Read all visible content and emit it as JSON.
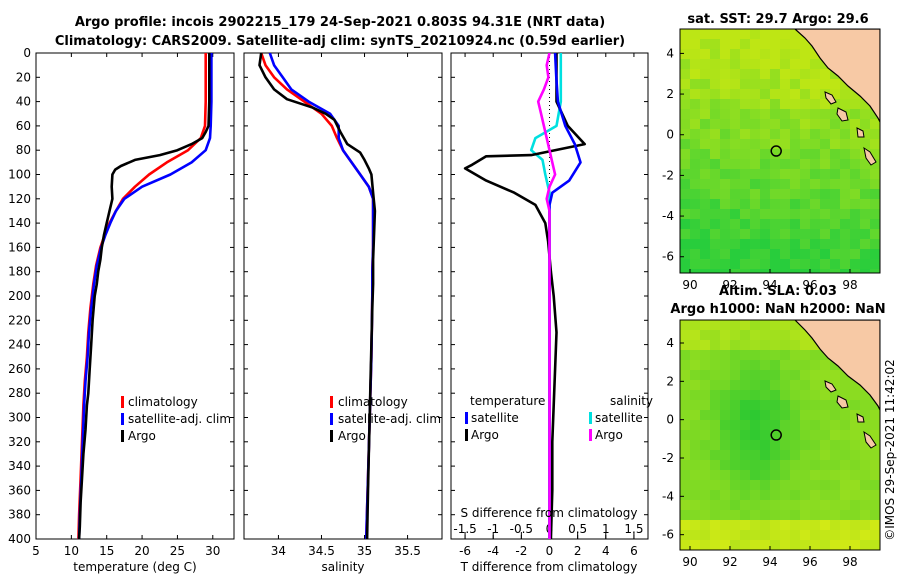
{
  "title_line1": "Argo profile: incois 2902215_179 24-Sep-2021 0.803S 94.31E (NRT data)",
  "title_line2": "Climatology: CARS2009. Satellite-adj clim: synTS_20210924.nc (0.59d earlier)",
  "credit": "©IMOS 29-Sep-2021 11:42:02",
  "colors": {
    "climatology": "#ff0000",
    "satellite": "#0000ff",
    "argo": "#000000",
    "sat_T": "#00e0e0",
    "sat_S": "#ff00ff",
    "land": "#f7c9a5"
  },
  "chart_data": [
    {
      "id": "temperature",
      "type": "line",
      "xlabel": "temperature (deg C)",
      "ylabel": "",
      "xlim": [
        5,
        33
      ],
      "ylim": [
        400,
        0
      ],
      "xticks": [
        5,
        10,
        15,
        20,
        25,
        30
      ],
      "yticks": [
        0,
        20,
        40,
        60,
        80,
        100,
        120,
        140,
        160,
        180,
        200,
        220,
        240,
        260,
        280,
        300,
        320,
        340,
        360,
        380,
        400
      ],
      "legend": [
        "climatology",
        "satellite-adj. clim",
        "Argo"
      ],
      "series": [
        {
          "name": "climatology",
          "color": "#ff0000",
          "points": [
            [
              29.0,
              0
            ],
            [
              29.0,
              20
            ],
            [
              29.0,
              40
            ],
            [
              28.9,
              60
            ],
            [
              28.3,
              70
            ],
            [
              26.5,
              80
            ],
            [
              23.5,
              90
            ],
            [
              21.0,
              100
            ],
            [
              19.0,
              110
            ],
            [
              17.3,
              120
            ],
            [
              16.3,
              130
            ],
            [
              15.4,
              140
            ],
            [
              14.7,
              150
            ],
            [
              14.1,
              160
            ],
            [
              13.5,
              175
            ],
            [
              13.1,
              190
            ],
            [
              12.7,
              210
            ],
            [
              12.4,
              230
            ],
            [
              12.2,
              250
            ],
            [
              11.9,
              270
            ],
            [
              11.7,
              290
            ],
            [
              11.5,
              320
            ],
            [
              11.3,
              350
            ],
            [
              11.1,
              380
            ],
            [
              11.0,
              400
            ]
          ]
        },
        {
          "name": "satellite-adj. clim",
          "color": "#0000ff",
          "points": [
            [
              29.8,
              0
            ],
            [
              29.8,
              20
            ],
            [
              29.8,
              40
            ],
            [
              29.7,
              60
            ],
            [
              29.6,
              70
            ],
            [
              29.0,
              80
            ],
            [
              27.0,
              90
            ],
            [
              24.0,
              100
            ],
            [
              20.0,
              110
            ],
            [
              17.5,
              120
            ],
            [
              16.3,
              130
            ],
            [
              15.5,
              140
            ],
            [
              14.8,
              150
            ],
            [
              14.2,
              160
            ],
            [
              13.6,
              175
            ],
            [
              13.2,
              190
            ],
            [
              12.8,
              210
            ],
            [
              12.5,
              230
            ],
            [
              12.3,
              250
            ],
            [
              12.0,
              270
            ],
            [
              11.8,
              290
            ],
            [
              11.6,
              320
            ],
            [
              11.4,
              350
            ],
            [
              11.2,
              380
            ],
            [
              11.1,
              400
            ]
          ]
        },
        {
          "name": "Argo",
          "color": "#000000",
          "points": [
            [
              29.5,
              0
            ],
            [
              29.5,
              20
            ],
            [
              29.5,
              40
            ],
            [
              29.4,
              60
            ],
            [
              29.0,
              65
            ],
            [
              28.5,
              70
            ],
            [
              27.0,
              75
            ],
            [
              25.0,
              80
            ],
            [
              22.5,
              84
            ],
            [
              19.0,
              88
            ],
            [
              17.0,
              93
            ],
            [
              16.2,
              96
            ],
            [
              15.8,
              100
            ],
            [
              15.7,
              110
            ],
            [
              15.8,
              120
            ],
            [
              15.4,
              130
            ],
            [
              15.0,
              140
            ],
            [
              14.6,
              150
            ],
            [
              14.3,
              160
            ],
            [
              14.1,
              170
            ],
            [
              13.8,
              180
            ],
            [
              13.6,
              190
            ],
            [
              13.3,
              200
            ],
            [
              13.0,
              220
            ],
            [
              12.8,
              240
            ],
            [
              12.6,
              260
            ],
            [
              12.4,
              280
            ],
            [
              12.2,
              290
            ],
            [
              12.0,
              310
            ],
            [
              11.7,
              330
            ],
            [
              11.5,
              350
            ],
            [
              11.3,
              370
            ],
            [
              11.2,
              390
            ],
            [
              11.1,
              400
            ]
          ]
        }
      ]
    },
    {
      "id": "salinity",
      "type": "line",
      "xlabel": "salinity",
      "ylabel": "",
      "xlim": [
        33.6,
        35.9
      ],
      "ylim": [
        400,
        0
      ],
      "xticks": [
        34,
        34.5,
        35,
        35.5
      ],
      "legend": [
        "climatology",
        "satellite-adj. clim",
        "Argo"
      ],
      "series": [
        {
          "name": "climatology",
          "color": "#ff0000",
          "points": [
            [
              33.8,
              0
            ],
            [
              33.85,
              10
            ],
            [
              33.95,
              20
            ],
            [
              34.1,
              30
            ],
            [
              34.3,
              40
            ],
            [
              34.5,
              50
            ],
            [
              34.62,
              60
            ],
            [
              34.68,
              70
            ],
            [
              34.75,
              80
            ],
            [
              34.85,
              90
            ],
            [
              34.95,
              100
            ],
            [
              35.05,
              110
            ],
            [
              35.1,
              120
            ],
            [
              35.1,
              140
            ],
            [
              35.1,
              160
            ],
            [
              35.09,
              180
            ],
            [
              35.09,
              200
            ],
            [
              35.08,
              250
            ],
            [
              35.06,
              300
            ],
            [
              35.04,
              350
            ],
            [
              35.02,
              400
            ]
          ]
        },
        {
          "name": "satellite-adj. clim",
          "color": "#0000ff",
          "points": [
            [
              33.9,
              0
            ],
            [
              33.95,
              10
            ],
            [
              34.05,
              20
            ],
            [
              34.15,
              30
            ],
            [
              34.35,
              40
            ],
            [
              34.6,
              50
            ],
            [
              34.7,
              60
            ],
            [
              34.7,
              70
            ],
            [
              34.75,
              80
            ],
            [
              34.85,
              90
            ],
            [
              34.95,
              100
            ],
            [
              35.05,
              110
            ],
            [
              35.1,
              120
            ],
            [
              35.1,
              140
            ],
            [
              35.1,
              160
            ],
            [
              35.09,
              180
            ],
            [
              35.09,
              200
            ],
            [
              35.08,
              250
            ],
            [
              35.06,
              300
            ],
            [
              35.04,
              350
            ],
            [
              35.02,
              400
            ]
          ]
        },
        {
          "name": "Argo",
          "color": "#000000",
          "points": [
            [
              33.8,
              0
            ],
            [
              33.78,
              10
            ],
            [
              33.85,
              20
            ],
            [
              33.95,
              30
            ],
            [
              34.1,
              38
            ],
            [
              34.4,
              45
            ],
            [
              34.55,
              50
            ],
            [
              34.65,
              55
            ],
            [
              34.72,
              65
            ],
            [
              34.8,
              75
            ],
            [
              34.95,
              82
            ],
            [
              35.0,
              88
            ],
            [
              35.05,
              95
            ],
            [
              35.08,
              100
            ],
            [
              35.1,
              115
            ],
            [
              35.12,
              130
            ],
            [
              35.11,
              150
            ],
            [
              35.1,
              170
            ],
            [
              35.1,
              190
            ],
            [
              35.09,
              210
            ],
            [
              35.08,
              240
            ],
            [
              35.07,
              270
            ],
            [
              35.06,
              300
            ],
            [
              35.05,
              330
            ],
            [
              35.04,
              360
            ],
            [
              35.03,
              400
            ]
          ]
        }
      ]
    },
    {
      "id": "differences",
      "type": "line",
      "xlabel": "T difference from climatology",
      "x2label": "S difference from climatology",
      "xlim": [
        -7,
        7
      ],
      "x2lim": [
        -1.75,
        1.75
      ],
      "ylim": [
        400,
        0
      ],
      "xticks": [
        -6,
        -4,
        -2,
        0,
        2,
        4,
        6
      ],
      "x2ticks": [
        -1.5,
        -1,
        -0.5,
        0,
        0.5,
        1,
        1.5
      ],
      "legend_groups": [
        {
          "title": "temperature",
          "items": [
            "satellite",
            "Argo"
          ]
        },
        {
          "title": "salinity",
          "items": [
            "satellite",
            "Argo"
          ]
        }
      ],
      "series": [
        {
          "name": "temperature satellite",
          "axis": "T",
          "color": "#00e0e0",
          "points": [
            [
              0.8,
              0
            ],
            [
              0.8,
              40
            ],
            [
              0.5,
              60
            ],
            [
              -1.0,
              70
            ],
            [
              -1.3,
              80
            ],
            [
              -0.5,
              88
            ],
            [
              -0.3,
              100
            ],
            [
              0,
              115
            ],
            [
              0,
              130
            ],
            [
              0,
              200
            ],
            [
              0,
              400
            ]
          ]
        },
        {
          "name": "temperature Argo",
          "axis": "T",
          "color": "#000000",
          "points": [
            [
              0.5,
              0
            ],
            [
              0.5,
              40
            ],
            [
              1.3,
              60
            ],
            [
              2.5,
              75
            ],
            [
              -1.3,
              84
            ],
            [
              -4.5,
              85
            ],
            [
              -5.5,
              92
            ],
            [
              -6.0,
              95
            ],
            [
              -4.5,
              105
            ],
            [
              -2.5,
              115
            ],
            [
              -1.0,
              125
            ],
            [
              -0.3,
              140
            ],
            [
              -0.1,
              155
            ],
            [
              0.1,
              180
            ],
            [
              0.3,
              200
            ],
            [
              0.5,
              230
            ],
            [
              0.4,
              260
            ],
            [
              0.3,
              290
            ],
            [
              0.2,
              320
            ],
            [
              0.2,
              360
            ],
            [
              0.1,
              400
            ]
          ]
        },
        {
          "name": "salinity satellite",
          "axis": "S",
          "color": "#0000ff",
          "points": [
            [
              0.1,
              0
            ],
            [
              0.12,
              20
            ],
            [
              0.15,
              40
            ],
            [
              0.28,
              60
            ],
            [
              0.45,
              75
            ],
            [
              0.55,
              90
            ],
            [
              0.35,
              105
            ],
            [
              0.05,
              115
            ],
            [
              0,
              125
            ],
            [
              0,
              150
            ],
            [
              0,
              200
            ],
            [
              0,
              400
            ]
          ]
        },
        {
          "name": "salinity Argo",
          "axis": "S",
          "color": "#ff00ff",
          "points": [
            [
              0.0,
              0
            ],
            [
              -0.05,
              10
            ],
            [
              -0.02,
              20
            ],
            [
              -0.1,
              30
            ],
            [
              -0.2,
              40
            ],
            [
              -0.15,
              50
            ],
            [
              -0.1,
              60
            ],
            [
              -0.05,
              70
            ],
            [
              0.0,
              80
            ],
            [
              0.05,
              90
            ],
            [
              0.1,
              100
            ],
            [
              0.0,
              110
            ],
            [
              -0.05,
              120
            ],
            [
              0.0,
              130
            ],
            [
              0.0,
              150
            ],
            [
              0.0,
              200
            ],
            [
              0.0,
              400
            ]
          ]
        }
      ]
    },
    {
      "id": "sst_map",
      "type": "heatmap",
      "title": "sat. SST: 29.7 Argo: 29.6",
      "xlim": [
        89.5,
        99.5
      ],
      "ylim": [
        -6.8,
        5.2
      ],
      "xticks": [
        90,
        92,
        94,
        96,
        98
      ],
      "yticks": [
        4,
        2,
        0,
        -2,
        -4,
        -6
      ],
      "marker": {
        "lon": 94.31,
        "lat": -0.803
      }
    },
    {
      "id": "sla_map",
      "type": "heatmap",
      "title": "Altim. SLA: 0.03",
      "subtitle": "Argo h1000: NaN h2000: NaN",
      "xlim": [
        89.5,
        99.5
      ],
      "ylim": [
        -6.8,
        5.2
      ],
      "xticks": [
        90,
        92,
        94,
        96,
        98
      ],
      "yticks": [
        4,
        2,
        0,
        -2,
        -4,
        -6
      ],
      "marker": {
        "lon": 94.31,
        "lat": -0.803
      }
    }
  ]
}
